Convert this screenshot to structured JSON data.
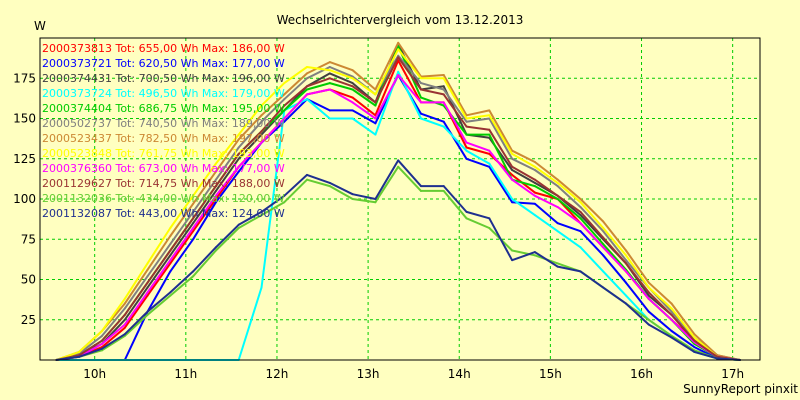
{
  "chart_data": {
    "type": "line",
    "title": "Wechselrichtervergleich vom 13.12.2013",
    "ylabel": "W",
    "footer": "SunnyReport pinxit",
    "xlim": [
      9.4,
      17.3
    ],
    "ylim": [
      0,
      200
    ],
    "x_ticks": [
      {
        "v": 10,
        "label": "10h"
      },
      {
        "v": 11,
        "label": "11h"
      },
      {
        "v": 12,
        "label": "12h"
      },
      {
        "v": 13,
        "label": "13h"
      },
      {
        "v": 14,
        "label": "14h"
      },
      {
        "v": 15,
        "label": "15h"
      },
      {
        "v": 16,
        "label": "16h"
      },
      {
        "v": 17,
        "label": "17h"
      }
    ],
    "y_ticks": [
      25,
      50,
      75,
      100,
      125,
      150,
      175
    ],
    "grid": true,
    "legend_position": "top-left",
    "x": [
      9.58,
      9.83,
      10.08,
      10.33,
      10.58,
      10.83,
      11.08,
      11.33,
      11.58,
      11.83,
      12.08,
      12.33,
      12.58,
      12.83,
      13.08,
      13.33,
      13.58,
      13.83,
      14.08,
      14.33,
      14.58,
      14.83,
      15.08,
      15.33,
      15.58,
      15.83,
      16.08,
      16.33,
      16.58,
      16.83,
      17.08
    ],
    "series": [
      {
        "name": "2000373813 Tot: 655,00 Wh Max: 186,00 W",
        "color": "#ff0000",
        "values": [
          0,
          2,
          8,
          20,
          40,
          60,
          80,
          100,
          120,
          135,
          150,
          165,
          168,
          163,
          152,
          186,
          160,
          160,
          132,
          128,
          115,
          104,
          100,
          85,
          70,
          55,
          38,
          25,
          12,
          2,
          0
        ]
      },
      {
        "name": "2000373721 Tot: 620,50 Wh Max: 177,00 W",
        "color": "#0000ff",
        "values": [
          0,
          0,
          0,
          0,
          30,
          55,
          75,
          98,
          117,
          135,
          148,
          162,
          155,
          155,
          147,
          177,
          153,
          148,
          125,
          120,
          98,
          97,
          85,
          80,
          65,
          48,
          30,
          18,
          8,
          1,
          0
        ]
      },
      {
        "name": "2000374431 Tot: 700,50 Wh Max: 196,00 W",
        "color": "#404040",
        "values": [
          0,
          3,
          10,
          25,
          45,
          65,
          85,
          105,
          125,
          140,
          155,
          170,
          178,
          172,
          160,
          196,
          168,
          170,
          140,
          138,
          118,
          110,
          102,
          90,
          75,
          60,
          40,
          28,
          12,
          2,
          0
        ]
      },
      {
        "name": "2000373724 Tot: 496,50 Wh Max: 179,00 W",
        "color": "#00ffff",
        "values": [
          0,
          0,
          0,
          0,
          0,
          0,
          0,
          0,
          0,
          45,
          155,
          162,
          150,
          150,
          140,
          179,
          150,
          145,
          130,
          122,
          100,
          90,
          80,
          70,
          55,
          40,
          25,
          15,
          5,
          1,
          0
        ]
      },
      {
        "name": "2000374404 Tot: 686,75 Wh Max: 195,00 W",
        "color": "#00cc00",
        "values": [
          0,
          3,
          12,
          28,
          48,
          68,
          88,
          108,
          128,
          142,
          155,
          168,
          172,
          168,
          158,
          195,
          163,
          158,
          140,
          140,
          112,
          108,
          100,
          88,
          72,
          56,
          38,
          25,
          10,
          2,
          0
        ]
      },
      {
        "name": "2000502737 Tot: 740,50 Wh Max: 189,00 W",
        "color": "#808080",
        "values": [
          0,
          4,
          15,
          32,
          52,
          72,
          92,
          112,
          132,
          148,
          162,
          175,
          182,
          176,
          165,
          189,
          172,
          168,
          148,
          150,
          125,
          118,
          108,
          95,
          80,
          62,
          45,
          30,
          14,
          3,
          0
        ]
      },
      {
        "name": "2000523437 Tot: 782,50 Wh Max: 197,00 W",
        "color": "#cc8833",
        "values": [
          0,
          5,
          18,
          35,
          56,
          77,
          97,
          117,
          137,
          152,
          165,
          178,
          185,
          180,
          168,
          197,
          176,
          177,
          152,
          155,
          130,
          123,
          112,
          100,
          86,
          68,
          48,
          35,
          16,
          3,
          0
        ]
      },
      {
        "name": "2000523848 Tot: 761,75 Wh Max: 193,00 W",
        "color": "#ffff00",
        "values": [
          0,
          5,
          18,
          38,
          60,
          82,
          102,
          122,
          140,
          158,
          172,
          182,
          180,
          175,
          165,
          193,
          175,
          175,
          150,
          152,
          128,
          120,
          110,
          98,
          82,
          65,
          45,
          32,
          14,
          2,
          0
        ]
      },
      {
        "name": "2000376360 Tot: 673,00 Wh Max: 177,00 W",
        "color": "#ff00ff",
        "values": [
          0,
          2,
          10,
          22,
          42,
          62,
          82,
          102,
          120,
          135,
          150,
          165,
          168,
          160,
          150,
          177,
          160,
          160,
          135,
          130,
          112,
          102,
          95,
          85,
          70,
          55,
          38,
          25,
          11,
          2,
          0
        ]
      },
      {
        "name": "2001129627 Tot: 714,75 Wh Max: 188,00 W",
        "color": "#993333",
        "values": [
          0,
          3,
          12,
          28,
          48,
          68,
          88,
          108,
          128,
          142,
          158,
          170,
          175,
          170,
          160,
          188,
          168,
          165,
          145,
          143,
          120,
          112,
          102,
          92,
          76,
          60,
          42,
          28,
          12,
          2,
          0
        ]
      },
      {
        "name": "2001132036 Tot: 434,00 Wh Max: 120,00 W",
        "color": "#66cc33",
        "values": [
          0,
          2,
          6,
          15,
          28,
          40,
          52,
          68,
          82,
          90,
          98,
          112,
          108,
          100,
          98,
          120,
          105,
          105,
          88,
          82,
          68,
          65,
          60,
          55,
          45,
          35,
          25,
          15,
          6,
          1,
          0
        ]
      },
      {
        "name": "2001132087 Tot: 443,00 Wh Max: 124,00 W",
        "color": "#1f2f8f",
        "values": [
          0,
          2,
          7,
          16,
          30,
          42,
          55,
          70,
          84,
          92,
          102,
          115,
          110,
          103,
          100,
          124,
          108,
          108,
          92,
          88,
          62,
          67,
          58,
          55,
          45,
          35,
          22,
          14,
          5,
          1,
          0
        ]
      }
    ]
  }
}
